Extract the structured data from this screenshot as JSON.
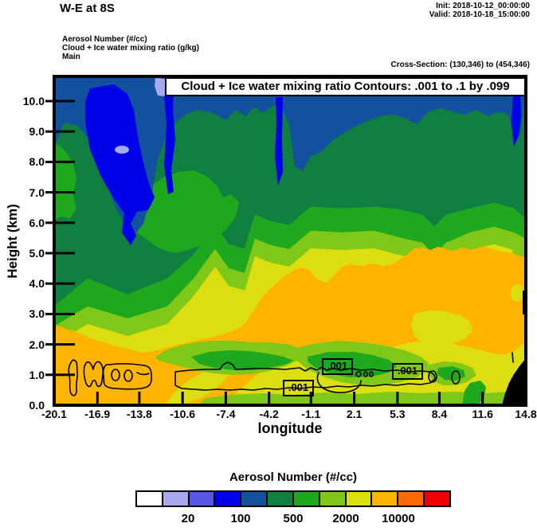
{
  "header": {
    "title": "W-E at 8S",
    "init_label": "Init: 2018-10-12_00:00:00",
    "valid_label": "Valid: 2018-10-18_15:00:00",
    "field_line_1": "Aerosol Number  (#/cc)",
    "field_line_2": "Cloud + Ice water mixing ratio  (g/kg)",
    "field_line_3": "Main",
    "cross_section": "Cross-Section: (130,346) to (454,346)"
  },
  "chart_data": {
    "type": "heatmap",
    "title": "Cloud + Ice water mixing ratio Contours: .001 to .1 by .099",
    "xlabel": "longitude",
    "ylabel": "Height (km)",
    "xlim": [
      -20.1,
      14.8
    ],
    "x_ticks": [
      -20.1,
      -16.9,
      -13.8,
      -10.6,
      -7.4,
      -4.2,
      -1.1,
      2.1,
      5.3,
      8.4,
      11.6,
      14.8
    ],
    "ylim_km": [
      0.0,
      10.8
    ],
    "y_ticks": [
      0.0,
      1.0,
      2.0,
      3.0,
      4.0,
      5.0,
      6.0,
      7.0,
      8.0,
      9.0,
      10.0
    ],
    "grid": false,
    "fill_field": "Aerosol Number (#/cc)",
    "contour_field": "Cloud + Ice water mixing ratio (g/kg)",
    "contour_levels": [
      0.001,
      0.1
    ],
    "contour_label": ".001",
    "colorbar": {
      "title": "Aerosol Number  (#/cc)",
      "colors": [
        "#FFFFFF",
        "#A8A8EE",
        "#5757E8",
        "#0000E8",
        "#12519E",
        "#0F8040",
        "#1EA81E",
        "#80C818",
        "#DCDE10",
        "#FFB400",
        "#FF6A00",
        "#EE0000"
      ],
      "tick_labels": [
        "20",
        "100",
        "500",
        "2000",
        "10000"
      ],
      "tick_boundary_indices": [
        2,
        4,
        6,
        8,
        10
      ],
      "position": "bottom"
    },
    "field_summary": [
      "Lowest aerosol numbers (dark blue 100-500 #/cc with bright blue <100 patches) aloft above 8 km, mainly over the west half and along the top of the section",
      "Sea-green 500-1000 #/cc layer fills most mid levels 4-9 km",
      "Values increase toward the surface: green then yellow-green then yellow 2000-5000 #/cc between 1 and 4 km",
      "Orange ~10000 #/cc maxima near the west edge below 2 km and in a broad east-side layer between about 1.5 and 4.5 km",
      "Thin cloud/ice mixing-ratio 0.001 g/kg contour lines hug the ~0.5-1.3 km layer across the section",
      "Black terrain wedge cuts the bottom-right corner near 14.8 longitude"
    ]
  }
}
